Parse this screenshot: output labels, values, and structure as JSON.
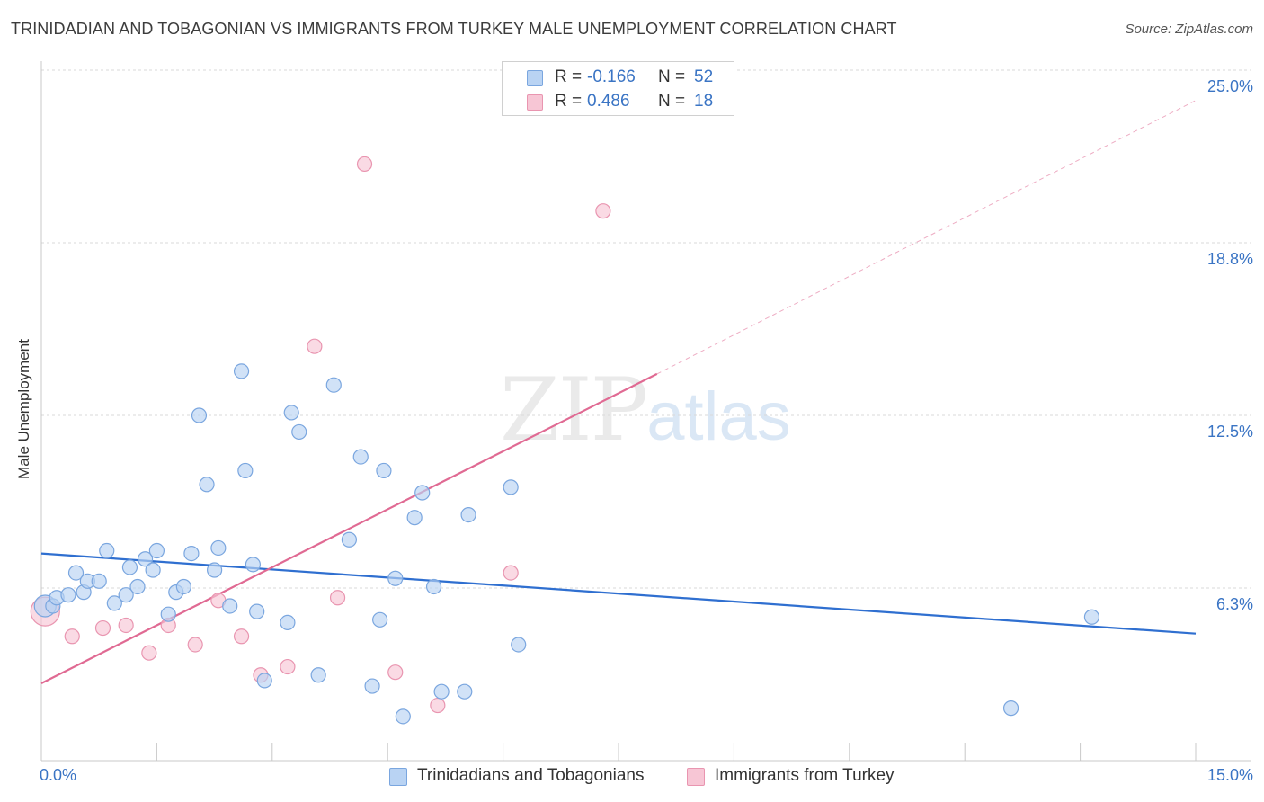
{
  "title": "TRINIDADIAN AND TOBAGONIAN VS IMMIGRANTS FROM TURKEY MALE UNEMPLOYMENT CORRELATION CHART",
  "source": "Source: ZipAtlas.com",
  "watermark": {
    "zip": "ZIP",
    "atlas": "atlas"
  },
  "legend": {
    "rows": [
      {
        "r_label": "R =",
        "r_value": "-0.166",
        "n_label": "N =",
        "n_value": "52"
      },
      {
        "r_label": "R =",
        "r_value": "0.486",
        "n_label": "N =",
        "n_value": "18"
      }
    ]
  },
  "bottom_legend": [
    "Trinidadians and Tobagonians",
    "Immigrants from Turkey"
  ],
  "colors": {
    "blue_fill": "#b9d3f3",
    "blue_stroke": "#7aa6df",
    "blue_line": "#2f6fd0",
    "pink_fill": "#f7c6d5",
    "pink_stroke": "#e995b0",
    "pink_line": "#e06a93",
    "grid": "#d9d9d9",
    "tick_label": "#3a74c4"
  },
  "chart_data": {
    "type": "scatter",
    "title": "TRINIDADIAN AND TOBAGONIAN VS IMMIGRANTS FROM TURKEY MALE UNEMPLOYMENT CORRELATION CHART",
    "xlabel": "",
    "ylabel": "Male Unemployment",
    "xlim": [
      0,
      15
    ],
    "ylim": [
      0,
      25
    ],
    "x_tick_labels": [
      "0.0%",
      "15.0%"
    ],
    "y_ticks": [
      6.3,
      12.5,
      18.8,
      25.0
    ],
    "y_tick_labels": [
      "6.3%",
      "12.5%",
      "18.8%",
      "25.0%"
    ],
    "grid": true,
    "series": [
      {
        "name": "Trinidadians and Tobagonians",
        "color": "blue",
        "trend": {
          "x": [
            0,
            15
          ],
          "y": [
            7.5,
            4.6
          ]
        },
        "points": [
          [
            0.05,
            5.6
          ],
          [
            0.15,
            5.6
          ],
          [
            0.2,
            5.9
          ],
          [
            0.35,
            6.0
          ],
          [
            0.45,
            6.8
          ],
          [
            0.55,
            6.1
          ],
          [
            0.6,
            6.5
          ],
          [
            0.75,
            6.5
          ],
          [
            0.85,
            7.6
          ],
          [
            0.95,
            5.7
          ],
          [
            1.1,
            6.0
          ],
          [
            1.15,
            7.0
          ],
          [
            1.25,
            6.3
          ],
          [
            1.35,
            7.3
          ],
          [
            1.45,
            6.9
          ],
          [
            1.5,
            7.6
          ],
          [
            1.65,
            5.3
          ],
          [
            1.75,
            6.1
          ],
          [
            1.85,
            6.3
          ],
          [
            1.95,
            7.5
          ],
          [
            2.05,
            12.5
          ],
          [
            2.15,
            10.0
          ],
          [
            2.25,
            6.9
          ],
          [
            2.3,
            7.7
          ],
          [
            2.45,
            5.6
          ],
          [
            2.6,
            14.1
          ],
          [
            2.65,
            10.5
          ],
          [
            2.75,
            7.1
          ],
          [
            2.8,
            5.4
          ],
          [
            2.9,
            2.9
          ],
          [
            3.2,
            5.0
          ],
          [
            3.25,
            12.6
          ],
          [
            3.35,
            11.9
          ],
          [
            3.6,
            3.1
          ],
          [
            3.8,
            13.6
          ],
          [
            4.0,
            8.0
          ],
          [
            4.15,
            11.0
          ],
          [
            4.3,
            2.7
          ],
          [
            4.4,
            5.1
          ],
          [
            4.45,
            10.5
          ],
          [
            4.6,
            6.6
          ],
          [
            4.7,
            1.6
          ],
          [
            4.85,
            8.8
          ],
          [
            4.95,
            9.7
          ],
          [
            5.1,
            6.3
          ],
          [
            5.2,
            2.5
          ],
          [
            5.5,
            2.5
          ],
          [
            5.55,
            8.9
          ],
          [
            6.1,
            9.9
          ],
          [
            6.2,
            4.2
          ],
          [
            12.6,
            1.9
          ],
          [
            13.65,
            5.2
          ]
        ]
      },
      {
        "name": "Immigrants from Turkey",
        "color": "pink",
        "trend": {
          "x": [
            0,
            8.0
          ],
          "y": [
            2.8,
            14.0
          ]
        },
        "trend_extension": {
          "x": [
            8.0,
            15
          ],
          "y": [
            14.0,
            23.9
          ]
        },
        "points": [
          [
            0.05,
            5.4
          ],
          [
            0.4,
            4.5
          ],
          [
            0.8,
            4.8
          ],
          [
            1.1,
            4.9
          ],
          [
            1.4,
            3.9
          ],
          [
            1.65,
            4.9
          ],
          [
            2.0,
            4.2
          ],
          [
            2.3,
            5.8
          ],
          [
            2.6,
            4.5
          ],
          [
            2.85,
            3.1
          ],
          [
            3.2,
            3.4
          ],
          [
            3.55,
            15.0
          ],
          [
            3.85,
            5.9
          ],
          [
            4.2,
            21.6
          ],
          [
            4.6,
            3.2
          ],
          [
            5.15,
            2.0
          ],
          [
            6.1,
            6.8
          ],
          [
            7.3,
            19.9
          ]
        ]
      }
    ]
  }
}
